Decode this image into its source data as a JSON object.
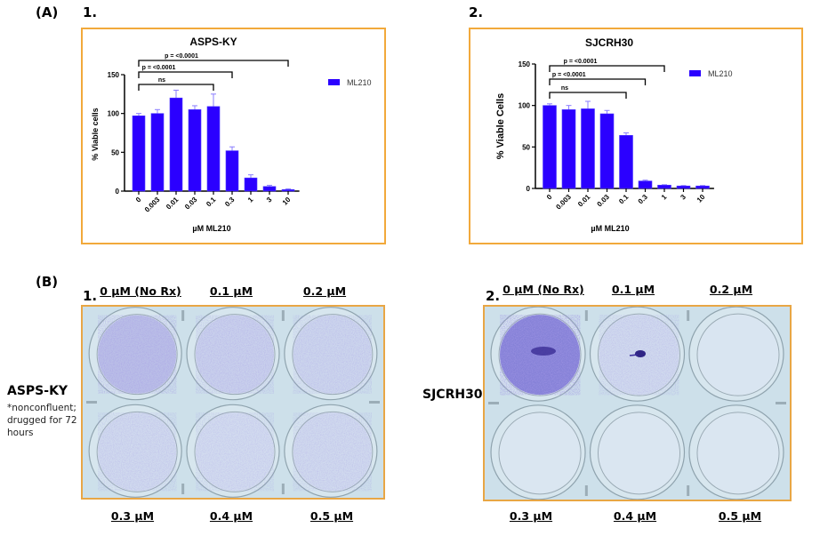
{
  "panels": {
    "A": {
      "label": "(A)"
    },
    "B": {
      "label": "(B)"
    }
  },
  "chart_data": [
    {
      "id": "A1",
      "panel_number": "1.",
      "type": "bar",
      "title": "ASPS-KY",
      "xlabel": "µM ML210",
      "ylabel": "% Viable cells",
      "ylim": [
        0,
        150
      ],
      "yticks": [
        0,
        50,
        100,
        150
      ],
      "grid": false,
      "legend": {
        "position": "top-right",
        "entries": [
          "ML210"
        ]
      },
      "categories": [
        "0",
        "0.003",
        "0.01",
        "0.03",
        "0.1",
        "0.3",
        "1",
        "3",
        "10"
      ],
      "series": [
        {
          "name": "ML210",
          "color": "#2b00ff",
          "values": [
            97,
            100,
            120,
            105,
            109,
            52,
            17,
            6,
            2
          ],
          "errors": [
            3,
            5,
            10,
            5,
            16,
            5,
            4,
            1.5,
            1
          ]
        }
      ],
      "annotations": [
        {
          "from": "0",
          "to": "0.1",
          "text": "ns"
        },
        {
          "from": "0",
          "to": "0.3",
          "text": "p = <0.0001"
        },
        {
          "from": "0",
          "to": "10",
          "text": "p = <0.0001"
        }
      ]
    },
    {
      "id": "A2",
      "panel_number": "2.",
      "type": "bar",
      "title": "SJCRH30",
      "xlabel": "µM ML210",
      "ylabel": "% Viable Cells",
      "ylim": [
        0,
        150
      ],
      "yticks": [
        0,
        50,
        100,
        150
      ],
      "grid": false,
      "legend": {
        "position": "top-right",
        "entries": [
          "ML210"
        ]
      },
      "categories": [
        "0",
        "0.003",
        "0.01",
        "0.03",
        "0.1",
        "0.3",
        "1",
        "3",
        "10"
      ],
      "series": [
        {
          "name": "ML210",
          "color": "#2b00ff",
          "values": [
            100,
            95,
            96,
            90,
            64,
            9,
            4,
            3,
            3
          ],
          "errors": [
            2,
            5,
            9,
            4,
            3,
            1,
            0.5,
            0.5,
            0.5
          ]
        }
      ],
      "annotations": [
        {
          "from": "0",
          "to": "0.1",
          "text": "ns"
        },
        {
          "from": "0",
          "to": "0.3",
          "text": "p = <0.0001"
        },
        {
          "from": "0",
          "to": "1",
          "text": "p = <0.0001"
        }
      ]
    }
  ],
  "plates": [
    {
      "id": "B1",
      "panel_number": "1.",
      "cell_line": "ASPS-KY",
      "note_lines": [
        "*nonconfluent;",
        "drugged for 72",
        "hours"
      ],
      "top_labels": [
        "0 µM (No Rx)",
        "0.1 µM",
        "0.2 µM"
      ],
      "bottom_labels": [
        "0.3 µM",
        "0.4 µM",
        "0.5 µM"
      ],
      "stain_intensity": [
        0.35,
        0.2,
        0.15,
        0.12,
        0.1,
        0.12
      ]
    },
    {
      "id": "B2",
      "panel_number": "2.",
      "cell_line": "SJCRH30",
      "top_labels": [
        "0 µM (No Rx)",
        "0.1 µM",
        "0.2 µM"
      ],
      "bottom_labels": [
        "0.3 µM",
        "0.4 µM",
        "0.5 µM"
      ],
      "stain_intensity": [
        0.9,
        0.12,
        0.03,
        0.02,
        0.02,
        0.02
      ]
    }
  ],
  "colors": {
    "bar": "#2b00ff",
    "frame": "#f2a93b",
    "stain": "#5b4ec9",
    "plate_bg": "#cfe0ea"
  }
}
